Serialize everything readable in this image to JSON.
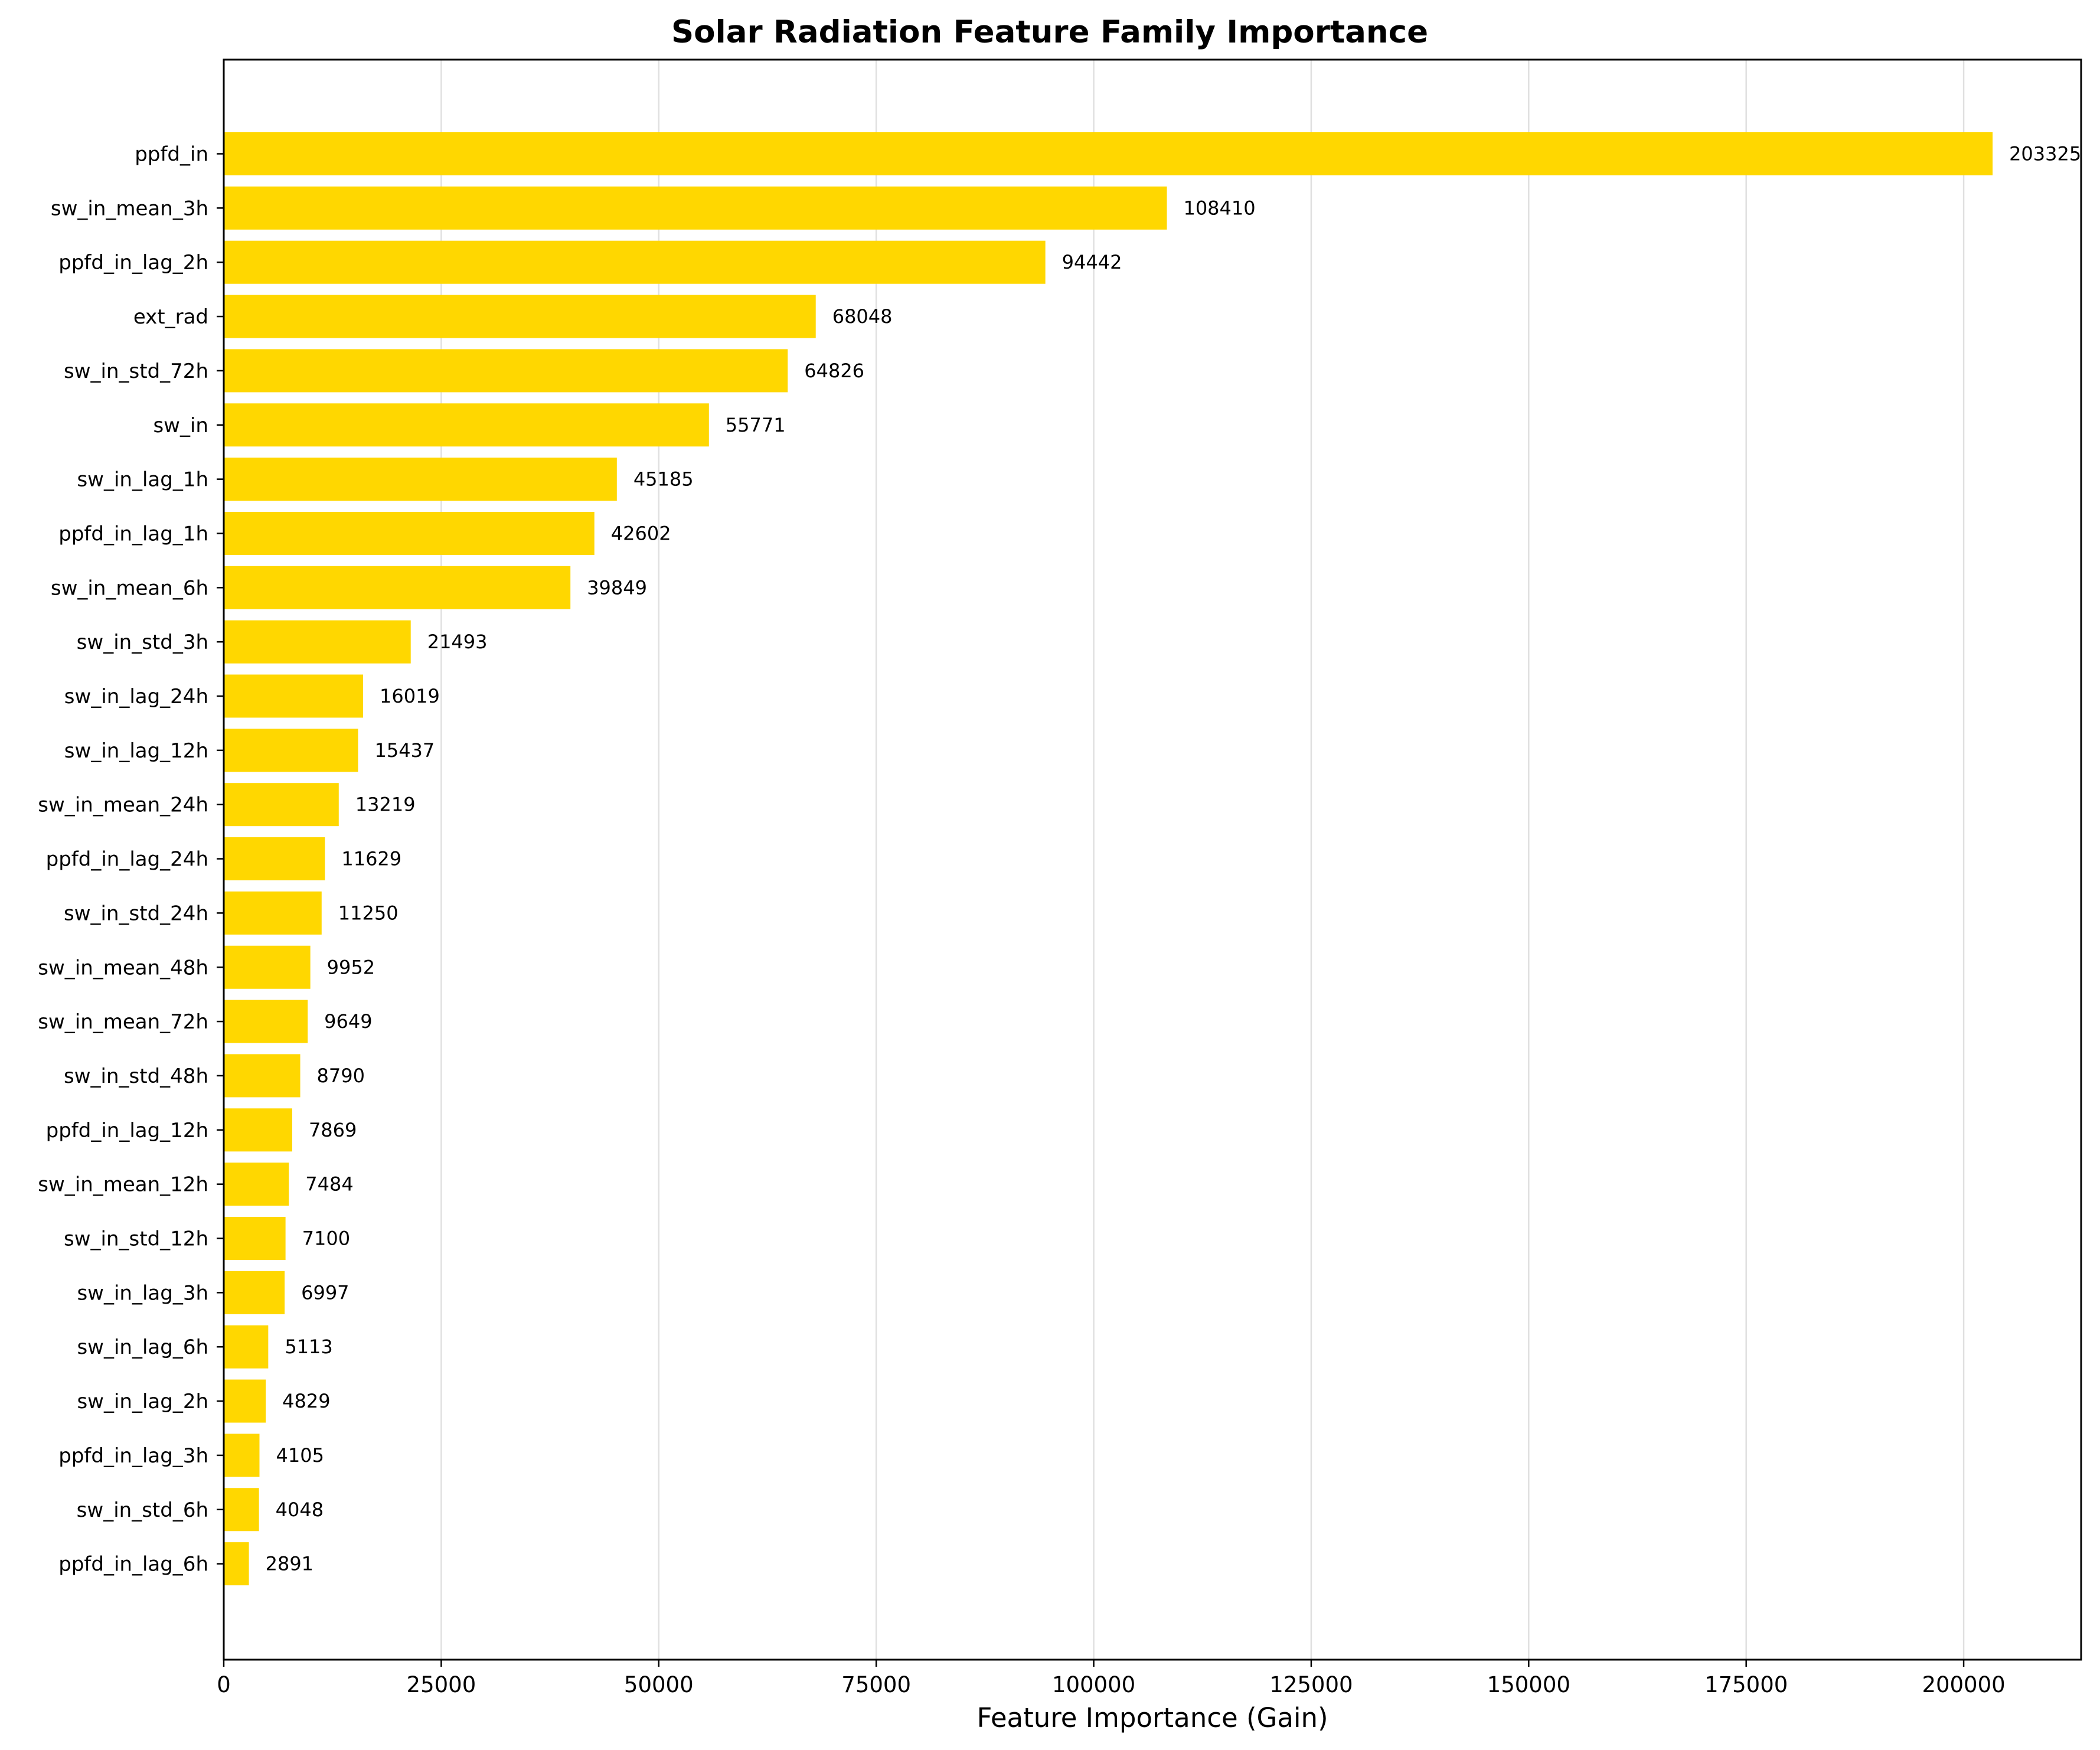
{
  "chart_data": {
    "type": "bar",
    "orientation": "horizontal",
    "title": "Solar Radiation Feature Family Importance",
    "xlabel": "Feature Importance (Gain)",
    "ylabel": "",
    "xlim": [
      0,
      213500
    ],
    "xticks": [
      0,
      25000,
      50000,
      75000,
      100000,
      125000,
      150000,
      175000,
      200000
    ],
    "grid": "x",
    "bar_color": "#ffd700",
    "categories": [
      "ppfd_in",
      "sw_in_mean_3h",
      "ppfd_in_lag_2h",
      "ext_rad",
      "sw_in_std_72h",
      "sw_in",
      "sw_in_lag_1h",
      "ppfd_in_lag_1h",
      "sw_in_mean_6h",
      "sw_in_std_3h",
      "sw_in_lag_24h",
      "sw_in_lag_12h",
      "sw_in_mean_24h",
      "ppfd_in_lag_24h",
      "sw_in_std_24h",
      "sw_in_mean_48h",
      "sw_in_mean_72h",
      "sw_in_std_48h",
      "ppfd_in_lag_12h",
      "sw_in_mean_12h",
      "sw_in_std_12h",
      "sw_in_lag_3h",
      "sw_in_lag_6h",
      "sw_in_lag_2h",
      "ppfd_in_lag_3h",
      "sw_in_std_6h",
      "ppfd_in_lag_6h"
    ],
    "values": [
      203325,
      108410,
      94442,
      68048,
      64826,
      55771,
      45185,
      42602,
      39849,
      21493,
      16019,
      15437,
      13219,
      11629,
      11250,
      9952,
      9649,
      8790,
      7869,
      7484,
      7100,
      6997,
      5113,
      4829,
      4105,
      4048,
      2891
    ],
    "value_labels": [
      "203325",
      "108410",
      "94442",
      "68048",
      "64826",
      "55771",
      "45185",
      "42602",
      "39849",
      "21493",
      "16019",
      "15437",
      "13219",
      "11629",
      "11250",
      "9952",
      "9649",
      "8790",
      "7869",
      "7484",
      "7100",
      "6997",
      "5113",
      "4829",
      "4105",
      "4048",
      "2891"
    ]
  }
}
